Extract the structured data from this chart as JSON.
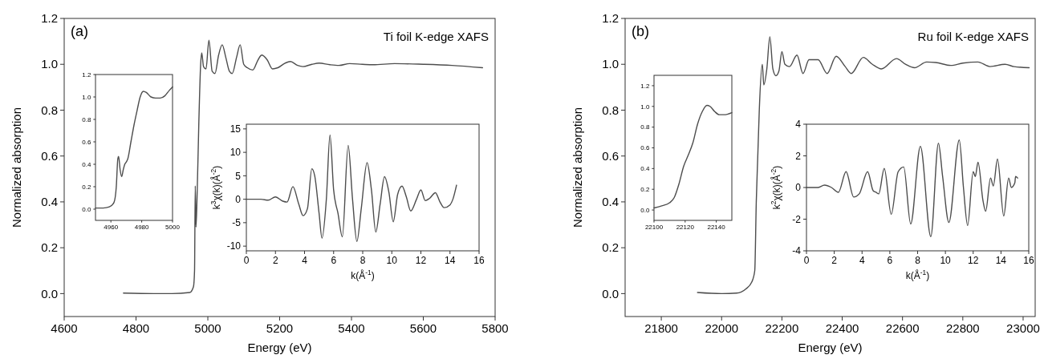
{
  "chart_data": [
    {
      "type": "line",
      "color": "#4d4d4d",
      "annotations": [
        "(a)",
        "Ti foil K-edge XAFS"
      ],
      "xlabel": "Energy (eV)",
      "ylabel": "Normalized absorption",
      "xlim": [
        4600,
        5800
      ],
      "ylim": [
        -0.1,
        1.2
      ],
      "xticks": [
        4600,
        4800,
        5000,
        5200,
        5400,
        5600,
        5800
      ],
      "yticks": [
        {
          "value": 0,
          "label": "0.0"
        },
        {
          "value": 0.2,
          "label": "0.2"
        },
        {
          "value": 0.4,
          "label": "0.4"
        },
        {
          "value": 0.6,
          "label": "0.6"
        },
        {
          "value": 0.8,
          "label": "0.8"
        },
        {
          "value": 1,
          "label": "1.0"
        },
        {
          "value": 1.2,
          "label": "1.2"
        }
      ],
      "x": [
        4765,
        4850,
        4900,
        4950,
        4960,
        4963,
        4965,
        4967,
        4970,
        4975,
        4980,
        4983,
        4988,
        4995,
        5003,
        5012,
        5020,
        5030,
        5040,
        5050,
        5060,
        5068,
        5080,
        5090,
        5100,
        5110,
        5125,
        5140,
        5150,
        5165,
        5180,
        5195,
        5215,
        5230,
        5250,
        5265,
        5290,
        5310,
        5340,
        5365,
        5395,
        5430,
        5460,
        5520,
        5600,
        5680,
        5765
      ],
      "values": [
        0.002,
        0,
        0,
        0.005,
        0.03,
        0.1,
        0.47,
        0.29,
        0.42,
        0.75,
        1.0,
        1.05,
        0.99,
        0.98,
        1.105,
        0.97,
        0.96,
        1.04,
        1.085,
        1.03,
        0.97,
        0.96,
        1.03,
        1.085,
        1.0,
        0.985,
        0.975,
        1.02,
        1.04,
        1.02,
        0.98,
        0.985,
        1.005,
        1.012,
        0.995,
        0.99,
        1.0,
        1.005,
        0.998,
        0.995,
        1.003,
        1.0,
        0.998,
        1.003,
        1.0,
        0.995,
        0.985
      ]
    },
    {
      "type": "line",
      "color": "#4d4d4d",
      "xlim": [
        4950,
        5000
      ],
      "ylim": [
        -0.1,
        1.2
      ],
      "xticks": [
        4960,
        4980,
        5000
      ],
      "yticks": [
        {
          "value": 0,
          "label": "0.0"
        },
        {
          "value": 0.2,
          "label": "0.2"
        },
        {
          "value": 0.4,
          "label": "0.4"
        },
        {
          "value": 0.6,
          "label": "0.6"
        },
        {
          "value": 0.8,
          "label": "0.8"
        },
        {
          "value": 1,
          "label": "1.0"
        },
        {
          "value": 1.2,
          "label": "1.2"
        }
      ],
      "x": [
        4950,
        4955,
        4959,
        4962,
        4963.5,
        4964.5,
        4965,
        4966,
        4967,
        4968,
        4969,
        4970,
        4971,
        4973,
        4975,
        4977,
        4979,
        4981,
        4983,
        4986,
        4989,
        4992,
        4995,
        4998,
        5000
      ],
      "values": [
        0.01,
        0.01,
        0.02,
        0.06,
        0.2,
        0.45,
        0.47,
        0.35,
        0.29,
        0.35,
        0.4,
        0.42,
        0.45,
        0.6,
        0.75,
        0.88,
        1.0,
        1.05,
        1.04,
        1.0,
        0.99,
        0.99,
        1.01,
        1.06,
        1.09
      ]
    },
    {
      "type": "line",
      "color": "#4d4d4d",
      "xlabel": "k(Å$^{-1}$)",
      "ylabel": "k$^{3}$χ(k)(Å$^{-2}$)",
      "xlim": [
        0,
        16
      ],
      "ylim": [
        -11,
        16
      ],
      "xticks": [
        0,
        2,
        4,
        6,
        8,
        10,
        12,
        14,
        16
      ],
      "yticks": [
        -10,
        -5,
        0,
        5,
        10,
        15
      ],
      "x": [
        0,
        1,
        1.5,
        2,
        2.5,
        2.8,
        3.2,
        3.6,
        3.9,
        4.2,
        4.5,
        4.7,
        5.0,
        5.2,
        5.5,
        5.75,
        6.0,
        6.3,
        6.6,
        7.0,
        7.3,
        7.6,
        7.9,
        8.3,
        8.6,
        8.9,
        9.2,
        9.5,
        9.8,
        10.1,
        10.4,
        10.7,
        11.0,
        11.3,
        11.7,
        12.0,
        12.3,
        12.6,
        13.0,
        13.3,
        13.6,
        14.0,
        14.2,
        14.45
      ],
      "values": [
        0,
        0,
        -0.2,
        0.5,
        -0.4,
        -0.6,
        2.7,
        -1,
        -3.5,
        -2,
        6.5,
        5,
        -3,
        -8.3,
        0,
        13.7,
        2,
        -3,
        -8,
        11.5,
        0,
        -9,
        -2,
        7.8,
        2,
        -7,
        -1,
        4.8,
        1.5,
        -4.8,
        1,
        2.8,
        0.5,
        -2.5,
        0,
        2,
        -0.3,
        0.2,
        1.4,
        -0.5,
        -1.8,
        -1.2,
        0,
        3
      ]
    },
    {
      "type": "line",
      "color": "#4d4d4d",
      "annotations": [
        "(b)",
        "Ru foil K-edge XAFS"
      ],
      "xlabel": "Energy (eV)",
      "ylabel": "Normalized absorption",
      "xlim": [
        21680,
        23040
      ],
      "ylim": [
        -0.1,
        1.2
      ],
      "xticks": [
        21800,
        22000,
        22200,
        22400,
        22600,
        22800,
        23000
      ],
      "yticks": [
        {
          "value": 0,
          "label": "0.0"
        },
        {
          "value": 0.2,
          "label": "0.2"
        },
        {
          "value": 0.4,
          "label": "0.4"
        },
        {
          "value": 0.6,
          "label": "0.6"
        },
        {
          "value": 0.8,
          "label": "0.8"
        },
        {
          "value": 1,
          "label": "1.0"
        },
        {
          "value": 1.2,
          "label": "1.2"
        }
      ],
      "x": [
        21920,
        22000,
        22050,
        22080,
        22100,
        22110,
        22115,
        22120,
        22125,
        22135,
        22140,
        22150,
        22160,
        22170,
        22180,
        22190,
        22200,
        22210,
        22225,
        22250,
        22270,
        22290,
        22320,
        22350,
        22380,
        22410,
        22430,
        22470,
        22500,
        22530,
        22580,
        22610,
        22640,
        22680,
        22710,
        22760,
        22800,
        22850,
        22890,
        22940,
        22970,
        23020
      ],
      "values": [
        0.005,
        0,
        0.002,
        0.02,
        0.05,
        0.1,
        0.4,
        0.6,
        0.8,
        1.0,
        0.91,
        0.98,
        1.12,
        0.98,
        0.95,
        0.97,
        1.055,
        1.0,
        0.99,
        1.04,
        0.96,
        1.02,
        1.02,
        0.96,
        1.035,
        0.99,
        0.96,
        1.03,
        1.0,
        0.98,
        1.025,
        1.0,
        0.985,
        1.01,
        1.008,
        0.995,
        1.005,
        1.01,
        0.99,
        1.0,
        0.99,
        0.985
      ]
    },
    {
      "type": "line",
      "color": "#4d4d4d",
      "xlim": [
        22100,
        22150
      ],
      "ylim": [
        -0.1,
        1.3
      ],
      "xticks": [
        22100,
        22120,
        22140
      ],
      "yticks": [
        {
          "value": 0,
          "label": "0.0"
        },
        {
          "value": 0.2,
          "label": "0.2"
        },
        {
          "value": 0.4,
          "label": "0.4"
        },
        {
          "value": 0.6,
          "label": "0.6"
        },
        {
          "value": 0.8,
          "label": "0.8"
        },
        {
          "value": 1,
          "label": "1.0"
        },
        {
          "value": 1.2,
          "label": "1.2"
        }
      ],
      "x": [
        22100,
        22105,
        22110,
        22113,
        22116,
        22119,
        22122,
        22125,
        22128,
        22131,
        22134,
        22136,
        22139,
        22142,
        22145,
        22150
      ],
      "values": [
        0.02,
        0.04,
        0.07,
        0.12,
        0.25,
        0.42,
        0.53,
        0.65,
        0.83,
        0.95,
        1.01,
        1.0,
        0.95,
        0.92,
        0.92,
        0.94
      ]
    },
    {
      "type": "line",
      "color": "#4d4d4d",
      "xlabel": "k(Å$^{-1}$)",
      "ylabel": "k$^{2}$χ(k)(Å$^{-2}$)",
      "xlim": [
        0,
        16
      ],
      "ylim": [
        -4,
        4
      ],
      "xticks": [
        0,
        2,
        4,
        6,
        8,
        10,
        12,
        14,
        16
      ],
      "yticks": [
        -4,
        -2,
        0,
        2,
        4
      ],
      "x": [
        0,
        0.8,
        1.3,
        1.8,
        2.3,
        2.85,
        3.4,
        3.8,
        4.4,
        4.8,
        5.0,
        5.2,
        5.6,
        6.1,
        6.6,
        7.0,
        7.5,
        8.2,
        8.95,
        9.5,
        9.8,
        10.25,
        11.0,
        11.3,
        11.6,
        12.0,
        12.15,
        12.35,
        12.7,
        12.9,
        13.25,
        13.45,
        13.75,
        14.2,
        14.55,
        14.75,
        15.0,
        15.05,
        15.2
      ],
      "values": [
        0,
        0,
        0.15,
        0,
        -0.3,
        1.0,
        -0.6,
        -0.4,
        1.0,
        -0.2,
        -0.3,
        -0.4,
        1.2,
        -1.7,
        1.0,
        1.3,
        -2.3,
        2.6,
        -3.1,
        2.8,
        0.7,
        -2.2,
        3.0,
        0,
        -2.4,
        1.0,
        0.7,
        1.6,
        -0.8,
        -1.5,
        0.6,
        0.1,
        1.8,
        -1.8,
        0.6,
        0,
        0.3,
        0.7,
        0.6
      ]
    }
  ]
}
